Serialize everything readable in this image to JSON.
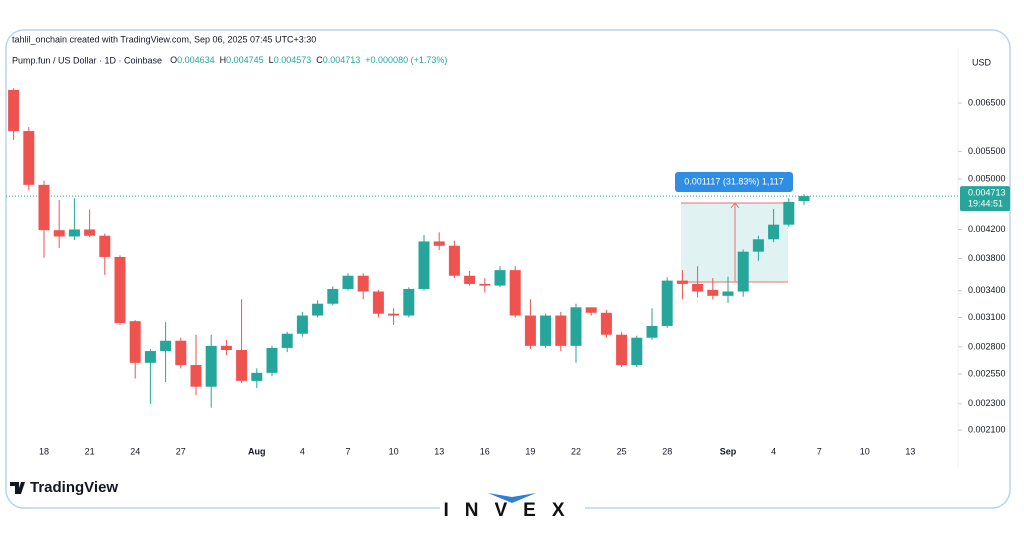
{
  "credit": "tahlil_onchain created with TradingView.com, Sep 06, 2025 07:45 UTC+3:30",
  "branding": {
    "logo": "TradingView",
    "watermark": "INVEX"
  },
  "chart_data": {
    "type": "candlestick",
    "symbol": "Pump.fun / US Dollar · 1D · Coinbase",
    "ohlc_labels": [
      "O",
      "H",
      "L",
      "C"
    ],
    "change": "+0.000080 (+1.73%)",
    "currency": "USD",
    "countdown": "19:44:51",
    "measure_label": "0.001117 (31.83%) 1,117",
    "up_color": "#26a69a",
    "down_color": "#ef5350",
    "log_scale": true,
    "grid": false,
    "ylim": [
      0.00203,
      0.00786
    ],
    "yticks": [
      {
        "value": 0.0065,
        "label": "0.006500"
      },
      {
        "value": 0.0055,
        "label": "0.005500"
      },
      {
        "value": 0.005,
        "label": "0.005000"
      },
      {
        "value": 0.0042,
        "label": "0.004200"
      },
      {
        "value": 0.0038,
        "label": "0.003800"
      },
      {
        "value": 0.0034,
        "label": "0.003400"
      },
      {
        "value": 0.0031,
        "label": "0.003100"
      },
      {
        "value": 0.0028,
        "label": "0.002800"
      },
      {
        "value": 0.00255,
        "label": "0.002550"
      },
      {
        "value": 0.0023,
        "label": "0.002300"
      },
      {
        "value": 0.0021,
        "label": "0.002100"
      }
    ],
    "categories": [
      null,
      null,
      "18",
      null,
      null,
      "21",
      null,
      null,
      "24",
      null,
      null,
      "27",
      null,
      null,
      null,
      null,
      "Aug",
      null,
      null,
      "4",
      null,
      null,
      "7",
      null,
      null,
      "10",
      null,
      null,
      "13",
      null,
      null,
      "16",
      null,
      null,
      "19",
      null,
      null,
      "22",
      null,
      null,
      "25",
      null,
      null,
      "28",
      null,
      null,
      null,
      "Sep",
      null,
      null,
      "4",
      null,
      null,
      "7",
      null,
      null,
      "10",
      null,
      null,
      "13"
    ],
    "open": [
      0.0068,
      0.0059,
      0.0049,
      0.00419,
      0.0041,
      0.0042,
      0.00411,
      0.00382,
      0.00306,
      0.00265,
      0.00276,
      0.00286,
      0.00263,
      0.00244,
      0.00281,
      0.00277,
      0.00249,
      0.00256,
      0.00279,
      0.00293,
      0.00312,
      0.00325,
      0.00342,
      0.00358,
      0.00339,
      0.00314,
      0.00312,
      0.00342,
      0.00403,
      0.00397,
      0.00358,
      0.00348,
      0.00346,
      0.00365,
      0.00312,
      0.00281,
      0.00312,
      0.00281,
      0.00321,
      0.00315,
      0.00292,
      0.00263,
      0.00289,
      0.00301,
      0.00352,
      0.00348,
      0.00341,
      0.00334,
      0.00339,
      0.00389,
      0.00406,
      0.00427,
      0.004634,
      null,
      null,
      null,
      null,
      null,
      null,
      null
    ],
    "high": [
      0.00684,
      0.00598,
      0.00497,
      0.00465,
      0.00468,
      0.0045,
      0.00414,
      0.00384,
      0.00307,
      0.00278,
      0.00305,
      0.00289,
      0.00292,
      0.00292,
      0.00287,
      0.0033,
      0.0026,
      0.00281,
      0.00295,
      0.00316,
      0.00329,
      0.00345,
      0.00361,
      0.00361,
      0.00341,
      0.0032,
      0.00344,
      0.00412,
      0.00416,
      0.00404,
      0.00364,
      0.00355,
      0.0037,
      0.0037,
      0.0033,
      0.00314,
      0.00316,
      0.00325,
      0.0032,
      0.00318,
      0.00295,
      0.00291,
      0.0032,
      0.00356,
      0.00365,
      0.0037,
      0.00355,
      0.00357,
      0.00392,
      0.00411,
      0.00451,
      0.00468,
      0.004745,
      null,
      null,
      null,
      null,
      null,
      null,
      null
    ],
    "low": [
      0.00572,
      0.00481,
      0.00381,
      0.00394,
      0.00405,
      0.00409,
      0.00359,
      0.00302,
      0.00251,
      0.0023,
      0.00248,
      0.0026,
      0.00237,
      0.00227,
      0.00272,
      0.00247,
      0.00243,
      0.00253,
      0.00275,
      0.0029,
      0.0031,
      0.00323,
      0.0034,
      0.0033,
      0.0031,
      0.00302,
      0.0031,
      0.0034,
      0.00391,
      0.00355,
      0.00346,
      0.00338,
      0.00344,
      0.0031,
      0.00278,
      0.00279,
      0.00276,
      0.00265,
      0.00312,
      0.00289,
      0.00261,
      0.00261,
      0.00287,
      0.00299,
      0.0033,
      0.00332,
      0.0033,
      0.00326,
      0.00333,
      0.00377,
      0.00402,
      0.00424,
      0.004573,
      null,
      null,
      null,
      null,
      null,
      null,
      null
    ],
    "close": [
      0.0059,
      0.0049,
      0.00419,
      0.0041,
      0.0042,
      0.00411,
      0.00382,
      0.00304,
      0.00265,
      0.00276,
      0.00286,
      0.00263,
      0.00244,
      0.00281,
      0.00277,
      0.00249,
      0.00256,
      0.00279,
      0.00293,
      0.00312,
      0.00325,
      0.00342,
      0.00358,
      0.00339,
      0.00314,
      0.00312,
      0.00342,
      0.00403,
      0.00397,
      0.00358,
      0.00348,
      0.00346,
      0.00365,
      0.00312,
      0.00281,
      0.00312,
      0.00281,
      0.00321,
      0.00315,
      0.00292,
      0.00263,
      0.00289,
      0.00301,
      0.00352,
      0.00348,
      0.00339,
      0.00334,
      0.00339,
      0.00389,
      0.00406,
      0.00427,
      0.00462,
      0.004713,
      null,
      null,
      null,
      null,
      null,
      null,
      null
    ]
  }
}
